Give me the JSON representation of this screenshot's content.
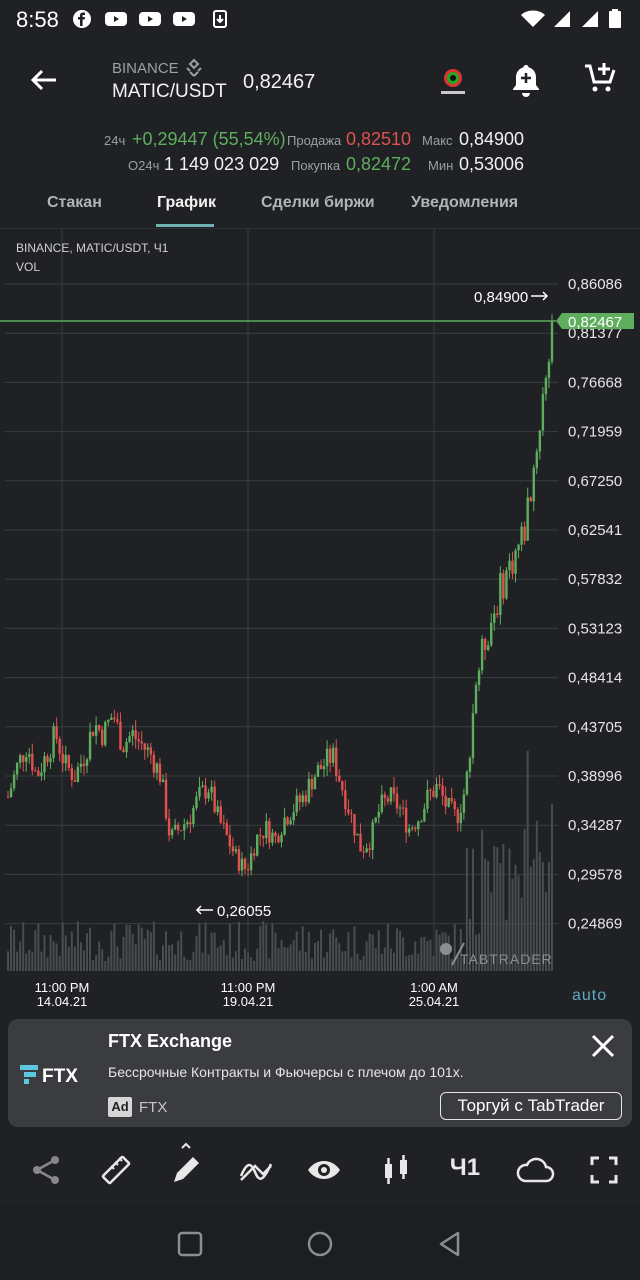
{
  "status_bar": {
    "time": "8:58"
  },
  "header": {
    "exchange": "BINANCE",
    "pair": "MATIC/USDT",
    "last_price": "0,82467"
  },
  "stats": {
    "change_label": "24ч",
    "change_value": "+0,29447 (55,54%)",
    "volume_label": "О24ч",
    "volume_value": "1 149 023 029",
    "sell_label": "Продажа",
    "sell_value": "0,82510",
    "buy_label": "Покупка",
    "buy_value": "0,82472",
    "max_label": "Макс",
    "max_value": "0,84900",
    "min_label": "Мин",
    "min_value": "0,53006"
  },
  "tabs": [
    {
      "label": "Стакан"
    },
    {
      "label": "График"
    },
    {
      "label": "Сделки биржи"
    },
    {
      "label": "Уведомления"
    }
  ],
  "chart_data": {
    "type": "candlestick",
    "title": "BINANCE, MATIC/USDT, Ч1",
    "subtitle": "VOL",
    "y_ticks": [
      "0,86086",
      "0,81377",
      "0,76668",
      "0,71959",
      "0,67250",
      "0,62541",
      "0,57832",
      "0,53123",
      "0,48414",
      "0,43705",
      "0,38996",
      "0,34287",
      "0,29578",
      "0,24869"
    ],
    "x_ticks": [
      {
        "time": "11:00 PM",
        "date": "14.04.21"
      },
      {
        "time": "11:00 PM",
        "date": "19.04.21"
      },
      {
        "time": "1:00 AM",
        "date": "25.04.21"
      }
    ],
    "high_marker": "0,84900",
    "low_marker": "0,26055",
    "current_price": "0,82467",
    "price_path": [
      0.37,
      0.4,
      0.42,
      0.39,
      0.41,
      0.43,
      0.4,
      0.39,
      0.41,
      0.44,
      0.43,
      0.45,
      0.42,
      0.43,
      0.42,
      0.41,
      0.39,
      0.33,
      0.34,
      0.35,
      0.37,
      0.38,
      0.35,
      0.33,
      0.31,
      0.3,
      0.33,
      0.34,
      0.33,
      0.35,
      0.36,
      0.37,
      0.39,
      0.4,
      0.41,
      0.38,
      0.35,
      0.32,
      0.33,
      0.36,
      0.37,
      0.36,
      0.34,
      0.35,
      0.37,
      0.38,
      0.36,
      0.35,
      0.38,
      0.48,
      0.52,
      0.55,
      0.58,
      0.6,
      0.62,
      0.68,
      0.75,
      0.82467
    ],
    "scale": "auto",
    "watermark": "TABTRADER",
    "colors": {
      "up": "#5fae5f",
      "down": "#e0524e",
      "grid": "#3a3d41",
      "price_line": "#5fae5f"
    }
  },
  "ad": {
    "title": "FTX Exchange",
    "text": "Бессрочные Контракты и Фьючерсы с плечом до 101х.",
    "badge": "Ad",
    "source": "FTX",
    "cta": "Торгуй с TabTrader",
    "logo_text": "FTX"
  },
  "toolbar": {
    "timeframe": "Ч1"
  }
}
